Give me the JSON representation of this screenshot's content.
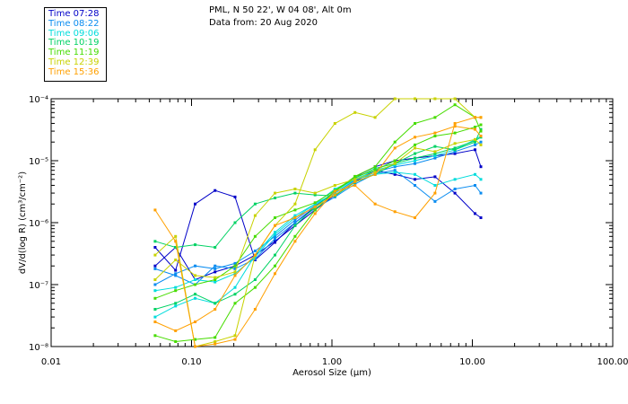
{
  "header": {
    "site_line": "PML, N 50 22', W 04 08', Alt 0m",
    "date_line": "Data from: 20 Aug 2020"
  },
  "legend": [
    {
      "label": "Time 07:28",
      "color": "#0000c8"
    },
    {
      "label": "Time 08:22",
      "color": "#0a8cf0"
    },
    {
      "label": "Time 09:06",
      "color": "#00dcdc"
    },
    {
      "label": "Time 10:19",
      "color": "#00d264"
    },
    {
      "label": "Time 11:19",
      "color": "#46dc00"
    },
    {
      "label": "Time 12:39",
      "color": "#c8d200"
    },
    {
      "label": "Time 15:36",
      "color": "#ffa000"
    }
  ],
  "chart_data": {
    "type": "line",
    "title": "PML, N 50 22', W 04 08', Alt 0m",
    "subtitle": "Data from: 20 Aug 2020",
    "xlabel": "Aerosol Size (μm)",
    "ylabel": "dV/d(log R) (cm³/cm⁻²)",
    "xscale": "log",
    "yscale": "log",
    "xlim": [
      0.01,
      100
    ],
    "ylim": [
      1e-08,
      0.0001
    ],
    "x_tick_labels": [
      "0.01",
      "0.10",
      "1.00",
      "10.00",
      "100.00"
    ],
    "x_tick_values": [
      0.01,
      0.1,
      1,
      10,
      100
    ],
    "y_tick_labels": [
      "10⁻⁸",
      "10⁻⁷",
      "10⁻⁶",
      "10⁻⁵",
      "10⁻⁴"
    ],
    "y_tick_values": [
      1e-08,
      1e-07,
      1e-06,
      1e-05,
      0.0001
    ],
    "x": [
      0.055,
      0.077,
      0.106,
      0.147,
      0.204,
      0.284,
      0.393,
      0.546,
      0.758,
      1.05,
      1.46,
      2.03,
      2.81,
      3.9,
      5.42,
      7.52,
      10.45,
      11.5
    ],
    "series": [
      {
        "name": "Time 07:28",
        "color": "#0000c8",
        "values": [
          4e-07,
          1.7e-07,
          2e-06,
          3.3e-06,
          2.6e-06,
          2.5e-07,
          4.8e-07,
          1e-06,
          1.8e-06,
          3.2e-06,
          5.5e-06,
          8e-06,
          1e-05,
          1.1e-05,
          1.2e-05,
          1.3e-05,
          1.5e-05,
          8e-06
        ]
      },
      {
        "name": "Time 07:28 b",
        "color": "#0000c8",
        "values": [
          2e-07,
          4e-07,
          1.2e-07,
          1.6e-07,
          2e-07,
          3e-07,
          5e-07,
          9e-07,
          1.6e-06,
          2.8e-06,
          4.6e-06,
          7e-06,
          6e-06,
          5e-06,
          5.5e-06,
          3e-06,
          1.4e-06,
          1.2e-06
        ]
      },
      {
        "name": "Time 08:22",
        "color": "#0a8cf0",
        "values": [
          1e-07,
          1.5e-07,
          2e-07,
          1.8e-07,
          2.2e-07,
          3.5e-07,
          6e-07,
          1.1e-06,
          1.9e-06,
          3e-06,
          4.8e-06,
          6.5e-06,
          8e-06,
          9e-06,
          1.1e-05,
          1.4e-05,
          1.8e-05,
          2e-05
        ]
      },
      {
        "name": "Time 08:22 b",
        "color": "#0a8cf0",
        "values": [
          1.8e-07,
          1.4e-07,
          1e-07,
          2e-07,
          1.8e-07,
          2.6e-07,
          5.5e-07,
          1e-06,
          1.7e-06,
          2.6e-06,
          4.2e-06,
          6.2e-06,
          7e-06,
          4e-06,
          2.2e-06,
          3.5e-06,
          4e-06,
          3e-06
        ]
      },
      {
        "name": "Time 09:06",
        "color": "#00dcdc",
        "values": [
          3e-08,
          4.5e-08,
          6e-08,
          5e-08,
          9e-08,
          3e-07,
          7e-07,
          1.3e-06,
          2e-06,
          3.5e-06,
          5e-06,
          7e-06,
          8.5e-06,
          1e-05,
          1.2e-05,
          1.5e-05,
          2.2e-05,
          2.5e-05
        ]
      },
      {
        "name": "Time 09:06 b",
        "color": "#00dcdc",
        "values": [
          8e-08,
          9e-08,
          1.2e-07,
          1.1e-07,
          1.5e-07,
          2.8e-07,
          6.5e-07,
          1.2e-06,
          2e-06,
          3e-06,
          5e-06,
          6e-06,
          6.5e-06,
          6e-06,
          4e-06,
          5e-06,
          6e-06,
          5e-06
        ]
      },
      {
        "name": "Time 10:19",
        "color": "#00d264",
        "values": [
          4e-08,
          5e-08,
          7e-08,
          5e-08,
          7e-08,
          1.2e-07,
          3e-07,
          9e-07,
          1.8e-06,
          3.2e-06,
          5.2e-06,
          7.5e-06,
          9e-06,
          1.1e-05,
          1.3e-05,
          1.6e-05,
          2.1e-05,
          2.4e-05
        ]
      },
      {
        "name": "Time 10:19 b",
        "color": "#00d264",
        "values": [
          5e-07,
          4e-07,
          4.4e-07,
          4e-07,
          1e-06,
          2e-06,
          2.5e-06,
          3e-06,
          2.8e-06,
          2.7e-06,
          4.5e-06,
          6e-06,
          9e-06,
          1.3e-05,
          1.7e-05,
          1.5e-05,
          2e-05,
          3.2e-05
        ]
      },
      {
        "name": "Time 11:19",
        "color": "#46dc00",
        "values": [
          6e-08,
          8e-08,
          1e-07,
          1.2e-07,
          2e-07,
          6e-07,
          1.2e-06,
          1.6e-06,
          2.1e-06,
          3.3e-06,
          5.5e-06,
          7e-06,
          1e-05,
          1.8e-05,
          2.5e-05,
          2.8e-05,
          3.5e-05,
          3.8e-05
        ]
      },
      {
        "name": "Time 11:19 b",
        "color": "#46dc00",
        "values": [
          1.5e-08,
          1.2e-08,
          1.3e-08,
          1.4e-08,
          5e-08,
          9e-08,
          2e-07,
          6e-07,
          1.6e-06,
          3.2e-06,
          5.6e-06,
          8e-06,
          2e-05,
          4e-05,
          5e-05,
          8e-05,
          5e-05,
          3e-05
        ]
      },
      {
        "name": "Time 12:39",
        "color": "#c8d200",
        "values": [
          1.2e-07,
          2.5e-07,
          1.4e-07,
          1.3e-07,
          1.6e-07,
          1.3e-06,
          3e-06,
          3.5e-06,
          3e-06,
          4e-06,
          5e-06,
          6.5e-06,
          9e-06,
          1.6e-05,
          1.4e-05,
          1.9e-05,
          2.2e-05,
          1.8e-05
        ]
      },
      {
        "name": "Time 12:39 b",
        "color": "#c8d200",
        "values": [
          3e-07,
          6e-07,
          1e-08,
          1.2e-08,
          1.5e-08,
          3e-07,
          9e-07,
          2e-06,
          1.5e-05,
          4e-05,
          6e-05,
          5e-05,
          0.0001,
          0.0001,
          0.0001,
          0.0001,
          5e-05,
          5e-05
        ]
      },
      {
        "name": "Time 15:36",
        "color": "#ffa000",
        "values": [
          1.6e-06,
          5e-07,
          1e-08,
          1.1e-08,
          1.3e-08,
          4e-08,
          1.5e-07,
          5e-07,
          1.4e-06,
          3.2e-06,
          4e-06,
          2e-06,
          1.5e-06,
          1.2e-06,
          3e-06,
          4e-05,
          5e-05,
          5e-05
        ]
      },
      {
        "name": "Time 15:36 b",
        "color": "#ffa000",
        "values": [
          2.5e-08,
          1.8e-08,
          2.5e-08,
          4e-08,
          1.4e-07,
          3e-07,
          9e-07,
          1.2e-06,
          1.8e-06,
          2.8e-06,
          4.6e-06,
          6e-06,
          1.6e-05,
          2.4e-05,
          2.8e-05,
          3.6e-05,
          3.2e-05,
          2.5e-05
        ]
      }
    ]
  }
}
